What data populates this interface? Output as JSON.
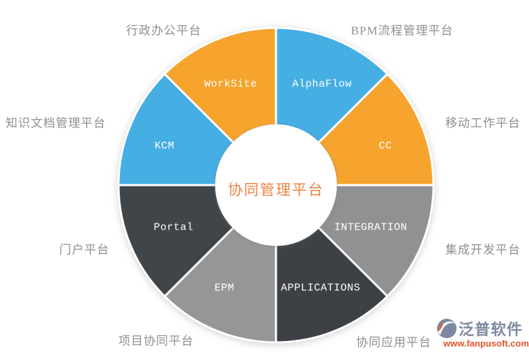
{
  "chart_data": {
    "type": "pie",
    "subtype": "donut",
    "title": "协同管理平台",
    "title_color": "#ef8243",
    "legend_position": "none",
    "grid": false,
    "equal_shares": true,
    "segments": [
      {
        "name": "AlphaFlow",
        "outer_label": "BPM流程管理平台",
        "value": 12.5,
        "start_angle": 0,
        "end_angle": 45,
        "color": "#45aee3"
      },
      {
        "name": "CC",
        "outer_label": "移动工作平台",
        "value": 12.5,
        "start_angle": 45,
        "end_angle": 90,
        "color": "#f6a42f"
      },
      {
        "name": "INTEGRATION",
        "outer_label": "集成开发平台",
        "value": 12.5,
        "start_angle": 90,
        "end_angle": 135,
        "color": "#909193"
      },
      {
        "name": "APPLICATIONS",
        "outer_label": "协同应用平台",
        "value": 12.5,
        "start_angle": 135,
        "end_angle": 180,
        "color": "#3d4144"
      },
      {
        "name": "EPM",
        "outer_label": "项目协同平台",
        "value": 12.5,
        "start_angle": 180,
        "end_angle": 225,
        "color": "#969696"
      },
      {
        "name": "Portal",
        "outer_label": "门户平台",
        "value": 12.5,
        "start_angle": 225,
        "end_angle": 270,
        "color": "#414549"
      },
      {
        "name": "KCM",
        "outer_label": "知识文档管理平台",
        "value": 12.5,
        "start_angle": 270,
        "end_angle": 315,
        "color": "#45aee3"
      },
      {
        "name": "WorkSite",
        "outer_label": "行政办公平台",
        "value": 12.5,
        "start_angle": 315,
        "end_angle": 360,
        "color": "#f6a42f"
      }
    ]
  },
  "logo": {
    "brand": "泛普软件",
    "url": "www.fanpusoft.com",
    "brand_color": "#7d89a2",
    "url_color": "#e2552a"
  }
}
